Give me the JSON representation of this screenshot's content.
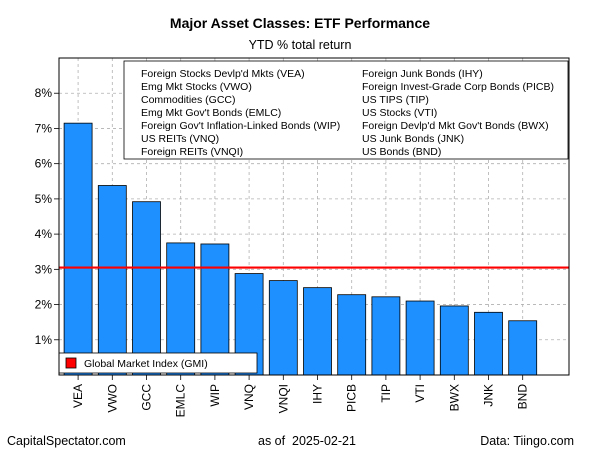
{
  "chart_data": {
    "type": "bar",
    "title": "Major Asset Classes: ETF Performance",
    "subtitle": "YTD % total return",
    "categories": [
      "VEA",
      "VWO",
      "GCC",
      "EMLC",
      "WIP",
      "VNQ",
      "VNQI",
      "IHY",
      "PICB",
      "TIP",
      "VTI",
      "BWX",
      "JNK",
      "BND"
    ],
    "values": [
      7.15,
      5.38,
      4.92,
      3.75,
      3.72,
      2.88,
      2.68,
      2.48,
      2.28,
      2.22,
      2.1,
      1.96,
      1.78,
      1.54
    ],
    "reference_line": {
      "label": "Global Market Index (GMI)",
      "value": 3.05,
      "color": "#ff0000"
    },
    "bar_color": "#1e90ff",
    "ylim": [
      0,
      9
    ],
    "y_ticks": [
      {
        "value": 1,
        "label": "1%"
      },
      {
        "value": 2,
        "label": "2%"
      },
      {
        "value": 3,
        "label": "3%"
      },
      {
        "value": 4,
        "label": "4%"
      },
      {
        "value": 5,
        "label": "5%"
      },
      {
        "value": 6,
        "label": "6%"
      },
      {
        "value": 7,
        "label": "7%"
      },
      {
        "value": 8,
        "label": "8%"
      }
    ],
    "grid": true,
    "legend_placement": "top-right",
    "legend_col1": [
      "Foreign Stocks Devlp'd Mkts (VEA)",
      "Emg Mkt Stocks (VWO)",
      "Commodities (GCC)",
      "Emg Mkt Gov't Bonds (EMLC)",
      "Foreign Gov't Inflation-Linked Bonds (WIP)",
      "US REITs (VNQ)",
      "Foreign REITs (VNQI)"
    ],
    "legend_col2": [
      "Foreign Junk Bonds (IHY)",
      "Foreign Invest-Grade Corp Bonds (PICB)",
      "US TIPS (TIP)",
      "US Stocks (VTI)",
      "Foreign Devlp'd Mkt Gov't Bonds (BWX)",
      "US Junk Bonds (JNK)",
      "US Bonds (BND)"
    ]
  },
  "footer": {
    "left": "CapitalSpectator.com",
    "center_prefix": "as of",
    "center_date": "2025-02-21",
    "right": "Data: Tiingo.com"
  }
}
